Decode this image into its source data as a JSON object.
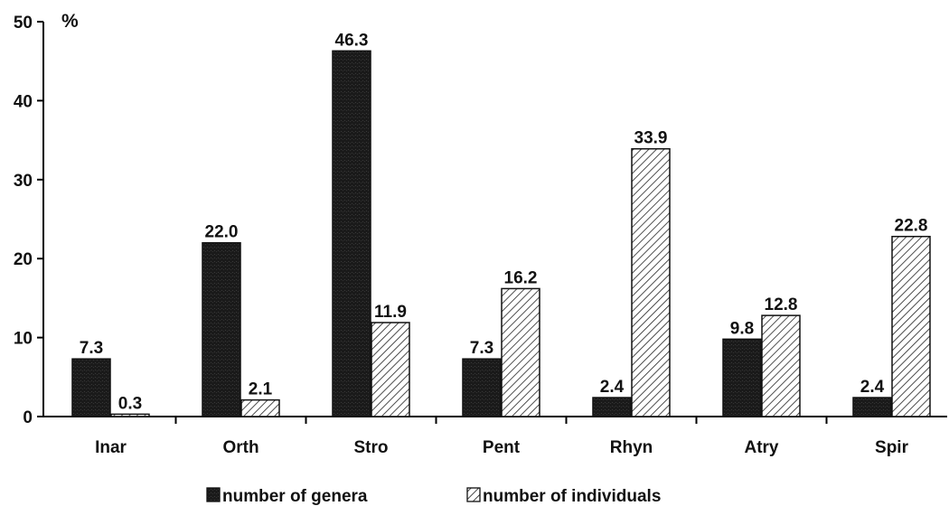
{
  "chart_data": {
    "type": "bar",
    "categories": [
      "Inar",
      "Orth",
      "Stro",
      "Pent",
      "Rhyn",
      "Atry",
      "Spir"
    ],
    "series": [
      {
        "name": "number of genera",
        "values": [
          7.3,
          22.0,
          46.3,
          7.3,
          2.4,
          9.8,
          2.4
        ],
        "labels": [
          "7.3",
          "22.0",
          "46.3",
          "7.3",
          "2.4",
          "9.8",
          "2.4"
        ],
        "fill": "solid-black"
      },
      {
        "name": "number of individuals",
        "values": [
          0.3,
          2.1,
          11.9,
          16.2,
          33.9,
          12.8,
          22.8
        ],
        "labels": [
          "0.3",
          "2.1",
          "11.9",
          "16.2",
          "33.9",
          "12.8",
          "22.8"
        ],
        "fill": "diagonal-hatch"
      }
    ],
    "y_unit": "%",
    "ylim": [
      0,
      50
    ],
    "yticks": [
      "0",
      "10",
      "20",
      "30",
      "40",
      "50"
    ],
    "grid": false,
    "legend_position": "bottom"
  },
  "colors": {
    "genera": "#1a1a1a",
    "individuals_bg": "#ffffff",
    "hatch": "#222222",
    "axis": "#000000"
  }
}
